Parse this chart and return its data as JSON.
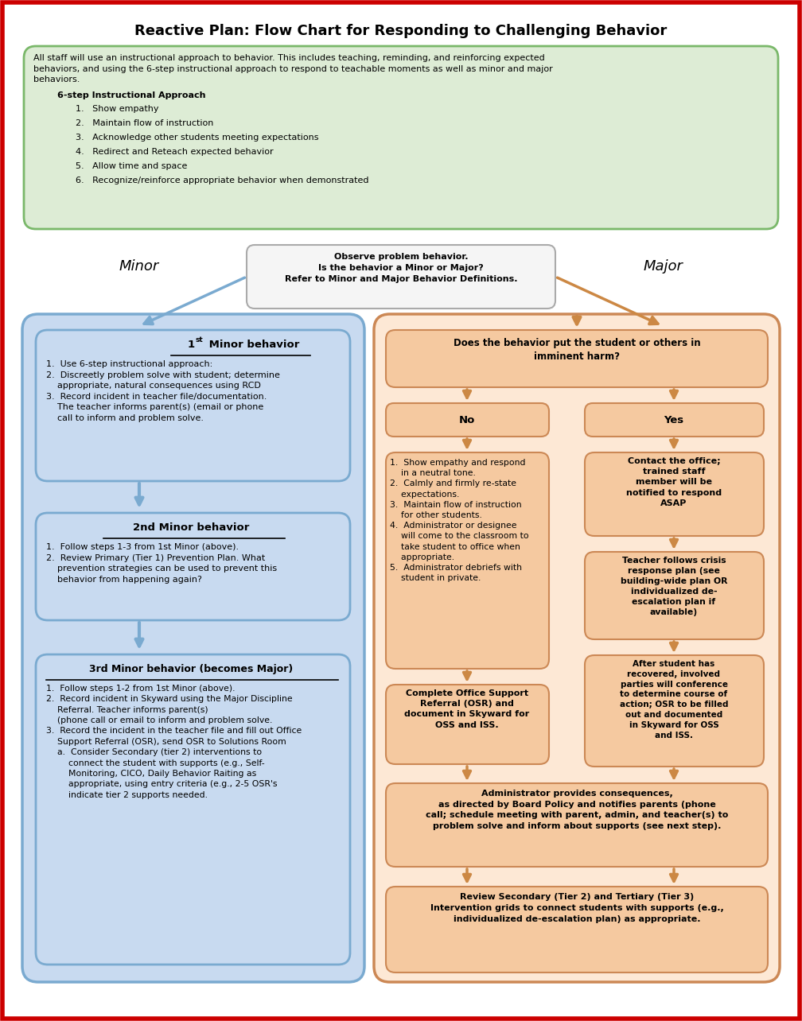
{
  "title": "Reactive Plan: Flow Chart for Responding to Challenging Behavior",
  "bg_color": "#ffffff",
  "border_color": "#cc0000",
  "green_box_color": "#ddecd5",
  "green_box_border": "#7ab86a",
  "blue_box_color": "#c8daf0",
  "blue_box_border": "#7aaad0",
  "peach_box_color": "#f5c9a0",
  "peach_box_border": "#cc8855",
  "peach_bg_color": "#fde8d5",
  "white_box_color": "#f5f5f5",
  "white_box_border": "#aaaaaa",
  "arrow_blue": "#7aaad0",
  "arrow_orange": "#cc8844",
  "font": "DejaVu Sans",
  "observe_text": "Observe problem behavior.\nIs the behavior a Minor or Major?\nRefer to Minor and Major Behavior Definitions.",
  "imminent_text": "Does the behavior put the student or others in\nimminent harm?",
  "no_steps": "1.  Show empathy and respond\n    in a neutral tone.\n2.  Calmly and firmly re-state\n    expectations.\n3.  Maintain flow of instruction\n    for other students.\n4.  Administrator or designee\n    will come to the classroom to\n    take student to office when\n    appropriate.\n5.  Administrator debriefs with\n    student in private.",
  "yes_contact": "Contact the office;\ntrained staff\nmember will be\nnotified to respond\nASAP",
  "crisis_text": "Teacher follows crisis\nresponse plan (see\nbuilding-wide plan OR\nindividualized de-\nescalation plan if\navailable)",
  "after_text": "After student has\nrecovered, involved\nparties will conference\nto determine course of\naction; OSR to be filled\nout and documented\nin Skyward for OSS\nand ISS.",
  "osr_text": "Complete Office Support\nReferral (OSR) and\ndocument in Skyward for\nOSS and ISS.",
  "admin_text": "Administrator provides consequences,\nas directed by Board Policy and notifies parents (phone\ncall; schedule meeting with parent, admin, and teacher(s) to\nproblem solve and inform about supports (see next step).",
  "review_text": "Review Secondary (Tier 2) and Tertiary (Tier 3)\nIntervention grids to connect students with supports (e.g.,\nindividualized de-escalation plan) as appropriate.",
  "minor1_body": "1.  Use 6-step instructional approach:\n2.  Discreetly problem solve with student; determine\n    appropriate, natural consequences using RCD\n3.  Record incident in teacher file/documentation.\n    The teacher informs parent(s) (email or phone\n    call to inform and problem solve.",
  "minor2_body": "1.  Follow steps 1-3 from 1st Minor (above).\n2.  Review Primary (Tier 1) Prevention Plan. What\n    prevention strategies can be used to prevent this\n    behavior from happening again?",
  "minor3_body": "1.  Follow steps 1-2 from 1st Minor (above).\n2.  Record incident in Skyward using the Major Discipline\n    Referral. Teacher informs parent(s)\n    (phone call or email to inform and problem solve.\n3.  Record the incident in the teacher file and fill out Office\n    Support Referral (OSR), send OSR to Solutions Room\n    a.  Consider Secondary (tier 2) interventions to\n        connect the student with supports (e.g., Self-\n        Monitoring, CICO, Daily Behavior Raiting as\n        appropriate, using entry criteria (e.g., 2-5 OSR's\n        indicate tier 2 supports needed.",
  "green_line1": "All staff will use an instructional approach to behavior. This includes teaching, reminding, and reinforcing expected",
  "green_line2": "behaviors, and using the 6-step instructional approach to respond to teachable moments as well as minor and major",
  "green_line3": "behaviors.",
  "green_header": "6-step Instructional Approach",
  "green_items": [
    "Show empathy",
    "Maintain flow of instruction",
    "Acknowledge other students meeting expectations",
    "Redirect and Reteach expected behavior",
    "Allow time and space",
    "Recognize/reinforce appropriate behavior when demonstrated"
  ]
}
